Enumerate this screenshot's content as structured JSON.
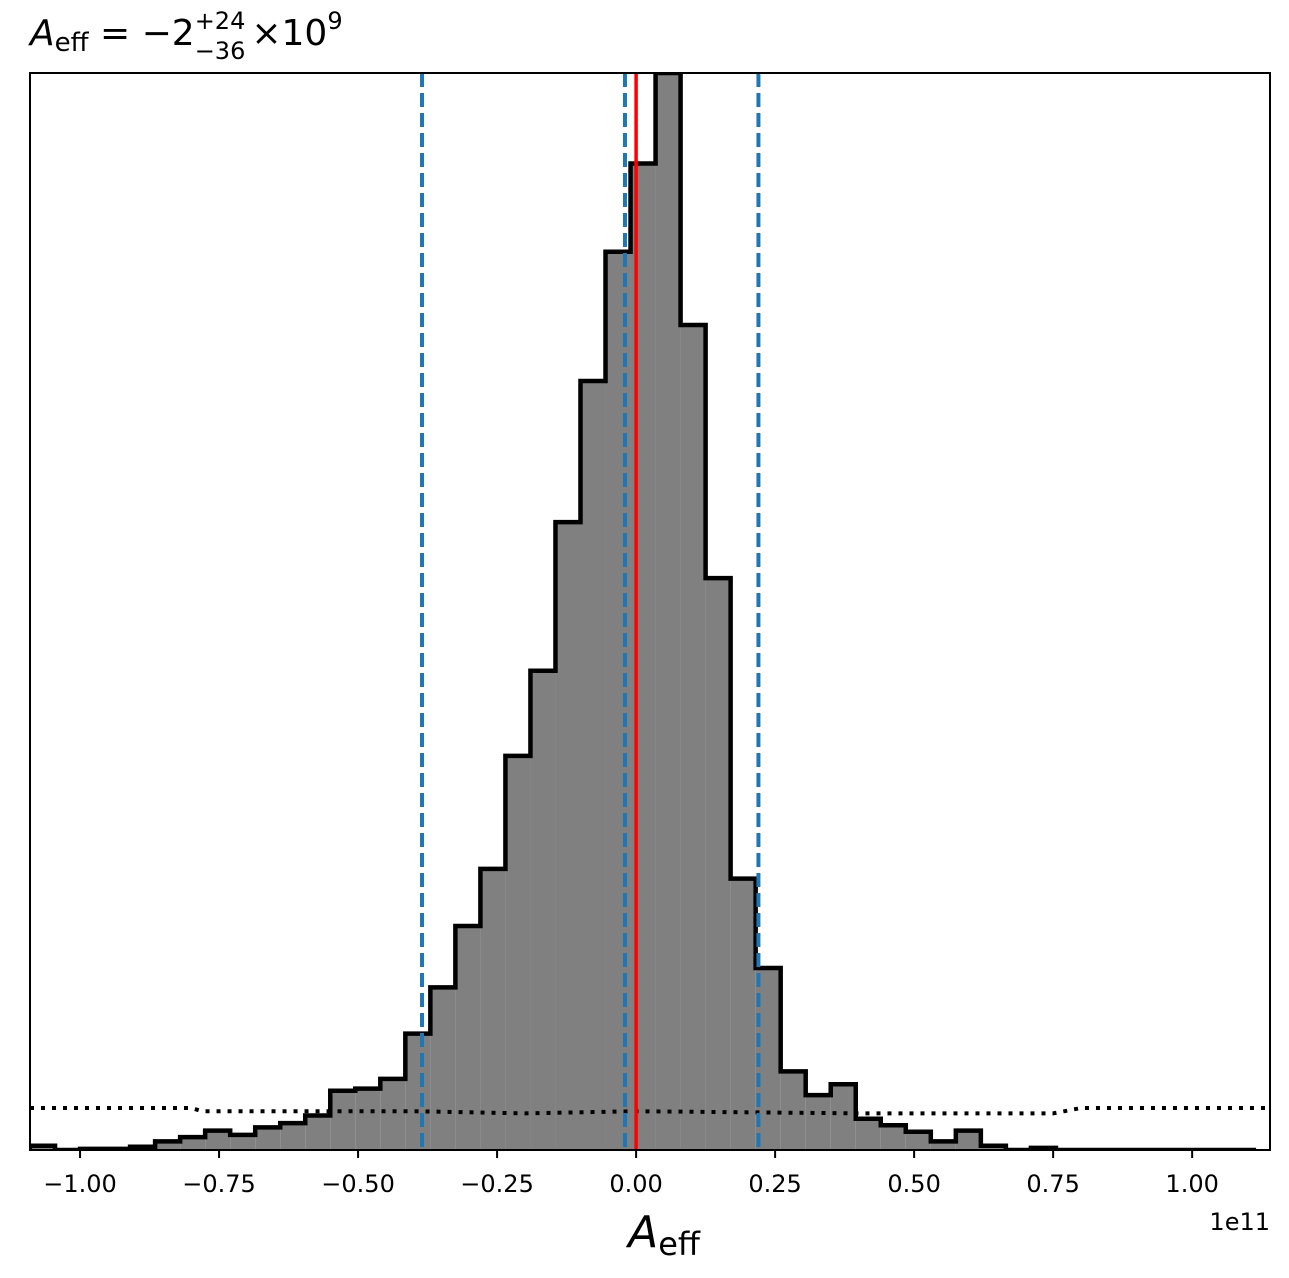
{
  "chart_data": {
    "type": "histogram",
    "title": {
      "symbol": "A",
      "symbol_sub": "eff",
      "equals": " = −2",
      "sup": "+24",
      "sub": "−36",
      "times": "×10",
      "exp": "9"
    },
    "xlabel": {
      "symbol": "A",
      "sub": "eff"
    },
    "offset_text": "1e11",
    "x_scale_factor": 100000000000.0,
    "xlim": [
      -1.09,
      1.14
    ],
    "ylim": [
      0,
      100
    ],
    "yticks_shown": false,
    "grid": false,
    "xticks": [
      {
        "value": -1.0,
        "label": "−1.00"
      },
      {
        "value": -0.75,
        "label": "−0.75"
      },
      {
        "value": -0.5,
        "label": "−0.50"
      },
      {
        "value": -0.25,
        "label": "−0.25"
      },
      {
        "value": 0.0,
        "label": "0.00"
      },
      {
        "value": 0.25,
        "label": "0.25"
      },
      {
        "value": 0.5,
        "label": "0.50"
      },
      {
        "value": 0.75,
        "label": "0.75"
      },
      {
        "value": 1.0,
        "label": "1.00"
      }
    ],
    "histogram": {
      "fill_color": "#808080",
      "edge_color": "#000000",
      "bin_edges": [
        -1.09,
        -1.045,
        -1.0,
        -0.955,
        -0.91,
        -0.865,
        -0.82,
        -0.775,
        -0.73,
        -0.685,
        -0.64,
        -0.595,
        -0.55,
        -0.505,
        -0.46,
        -0.415,
        -0.37,
        -0.325,
        -0.28,
        -0.235,
        -0.19,
        -0.145,
        -0.1,
        -0.055,
        -0.01,
        0.035,
        0.08,
        0.125,
        0.17,
        0.215,
        0.26,
        0.305,
        0.35,
        0.395,
        0.44,
        0.485,
        0.53,
        0.575,
        0.62,
        0.665,
        0.71,
        0.755,
        0.8,
        0.845,
        0.89,
        0.935,
        0.98,
        1.025,
        1.07,
        1.115
      ],
      "heights": [
        0.4,
        0.0,
        0.1,
        0.1,
        0.3,
        0.8,
        1.2,
        1.8,
        1.4,
        2.1,
        2.5,
        3.2,
        5.5,
        5.7,
        6.6,
        10.8,
        15.1,
        20.8,
        26.1,
        36.6,
        44.5,
        58.3,
        71.4,
        83.4,
        91.6,
        100.0,
        76.6,
        53.1,
        25.2,
        16.9,
        7.3,
        5.1,
        6.1,
        2.9,
        2.3,
        1.7,
        0.8,
        1.8,
        0.4,
        0.0,
        0.2,
        0.0,
        0.0,
        0.0,
        0.0,
        0.0,
        0.0,
        0.0,
        0.0
      ]
    },
    "prior": {
      "style": "dotted",
      "color": "#000000",
      "points": [
        [
          -1.09,
          3.9
        ],
        [
          -0.8,
          3.9
        ],
        [
          -0.78,
          3.6
        ],
        [
          -0.4,
          3.6
        ],
        [
          -0.2,
          3.4
        ],
        [
          0.0,
          3.6
        ],
        [
          0.4,
          3.4
        ],
        [
          0.75,
          3.4
        ],
        [
          0.8,
          3.9
        ],
        [
          1.14,
          3.9
        ]
      ]
    },
    "vlines": [
      {
        "x": -0.385,
        "color": "#1f77b4",
        "style": "dashed",
        "role": "lower bound"
      },
      {
        "x": -0.02,
        "color": "#1f77b4",
        "style": "dashed",
        "role": "median"
      },
      {
        "x": 0.22,
        "color": "#1f77b4",
        "style": "dashed",
        "role": "upper bound"
      },
      {
        "x": 0.0,
        "color": "#ff0000",
        "style": "solid",
        "role": "true value"
      }
    ]
  }
}
